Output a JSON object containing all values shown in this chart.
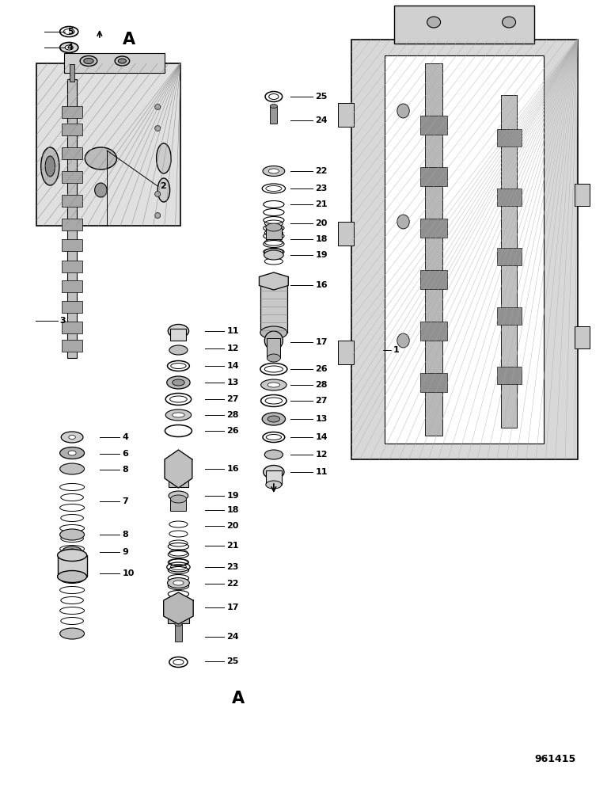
{
  "bg_color": "#ffffff",
  "line_color": "#000000",
  "fig_width": 7.72,
  "fig_height": 10.0,
  "dpi": 100,
  "catalog_number": "961415"
}
